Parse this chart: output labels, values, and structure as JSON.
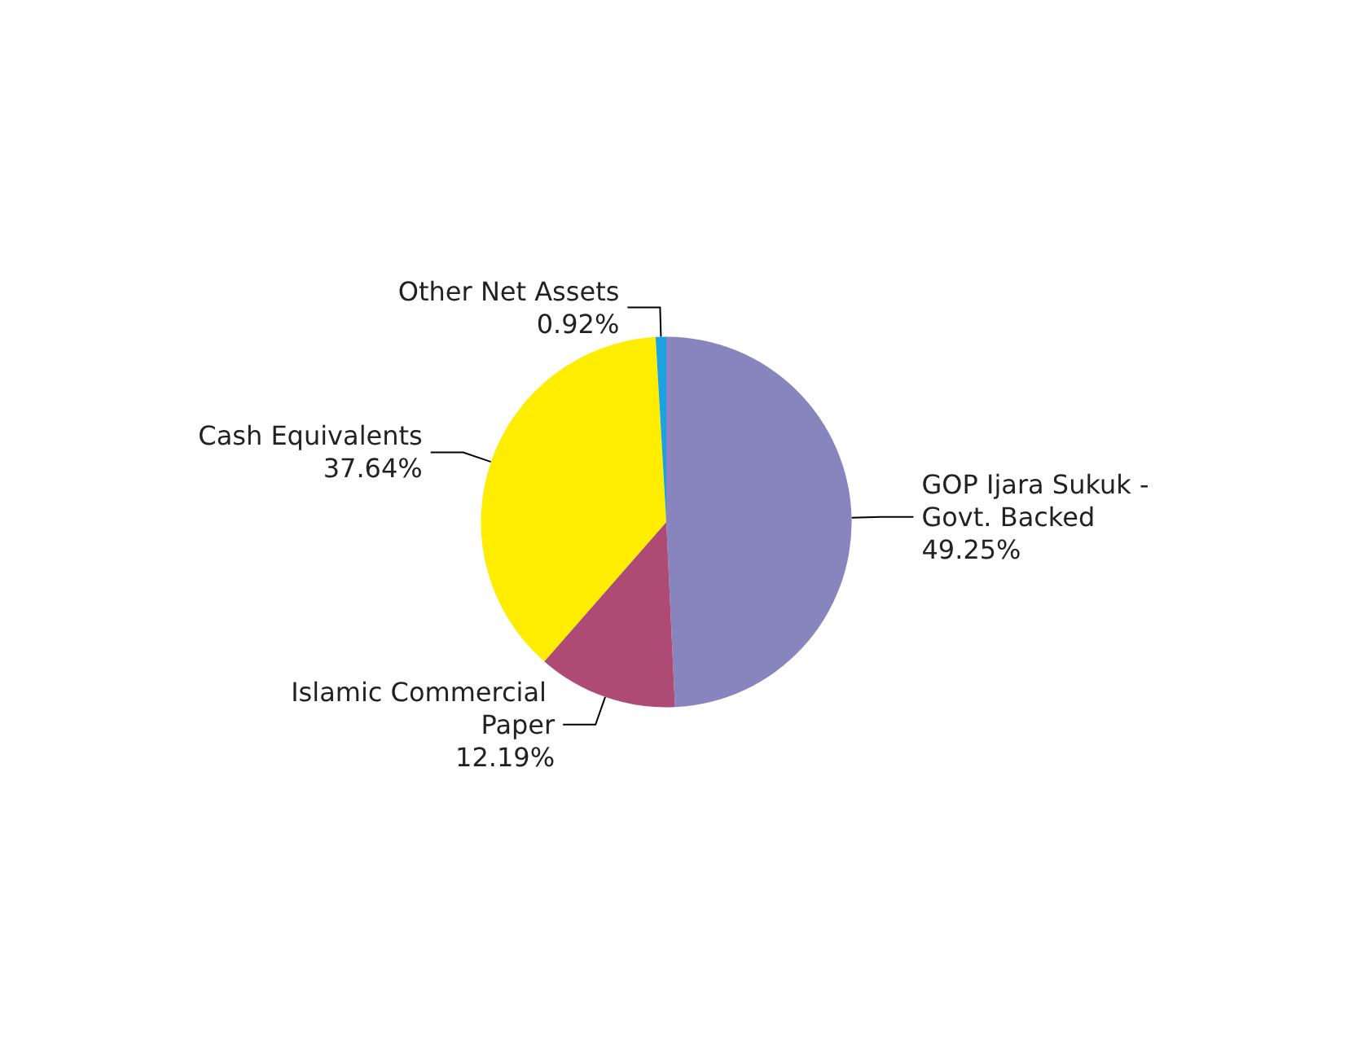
{
  "chart_data": {
    "type": "pie",
    "categories": [
      "GOP Ijara Sukuk - Govt. Backed",
      "Islamic Commercial Paper",
      "Cash Equivalents",
      "Other Net Assets"
    ],
    "values": [
      49.25,
      12.19,
      37.64,
      0.92
    ],
    "value_labels": [
      "49.25%",
      "12.19%",
      "37.64%",
      "0.92%"
    ],
    "colors": [
      "#8884be",
      "#ad4b75",
      "#ffed00",
      "#1aa3e0"
    ],
    "legend": false
  }
}
